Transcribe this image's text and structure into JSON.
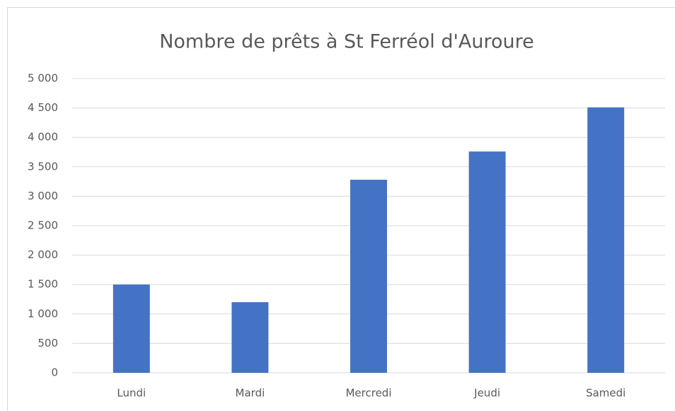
{
  "chart_data": {
    "type": "bar",
    "title": "Nombre de prêts à St Ferréol d'Auroure",
    "categories": [
      "Lundi",
      "Mardi",
      "Mercredi",
      "Jeudi",
      "Samedi"
    ],
    "values": [
      1500,
      1200,
      3280,
      3760,
      4510
    ],
    "color": "#4472c4",
    "ylim": [
      0,
      5000
    ],
    "yticks": [
      0,
      500,
      {
        "value": 1000,
        "label": "1 000"
      },
      {
        "value": 1500,
        "label": "1 500"
      },
      {
        "value": 2000,
        "label": "2 000"
      },
      {
        "value": 2500,
        "label": "2 500"
      },
      {
        "value": 3000,
        "label": "3 000"
      },
      {
        "value": 3500,
        "label": "3 500"
      },
      {
        "value": 4000,
        "label": "4 000"
      },
      {
        "value": 4500,
        "label": "4 500"
      },
      {
        "value": 5000,
        "label": "5 000"
      }
    ],
    "grid": true
  }
}
